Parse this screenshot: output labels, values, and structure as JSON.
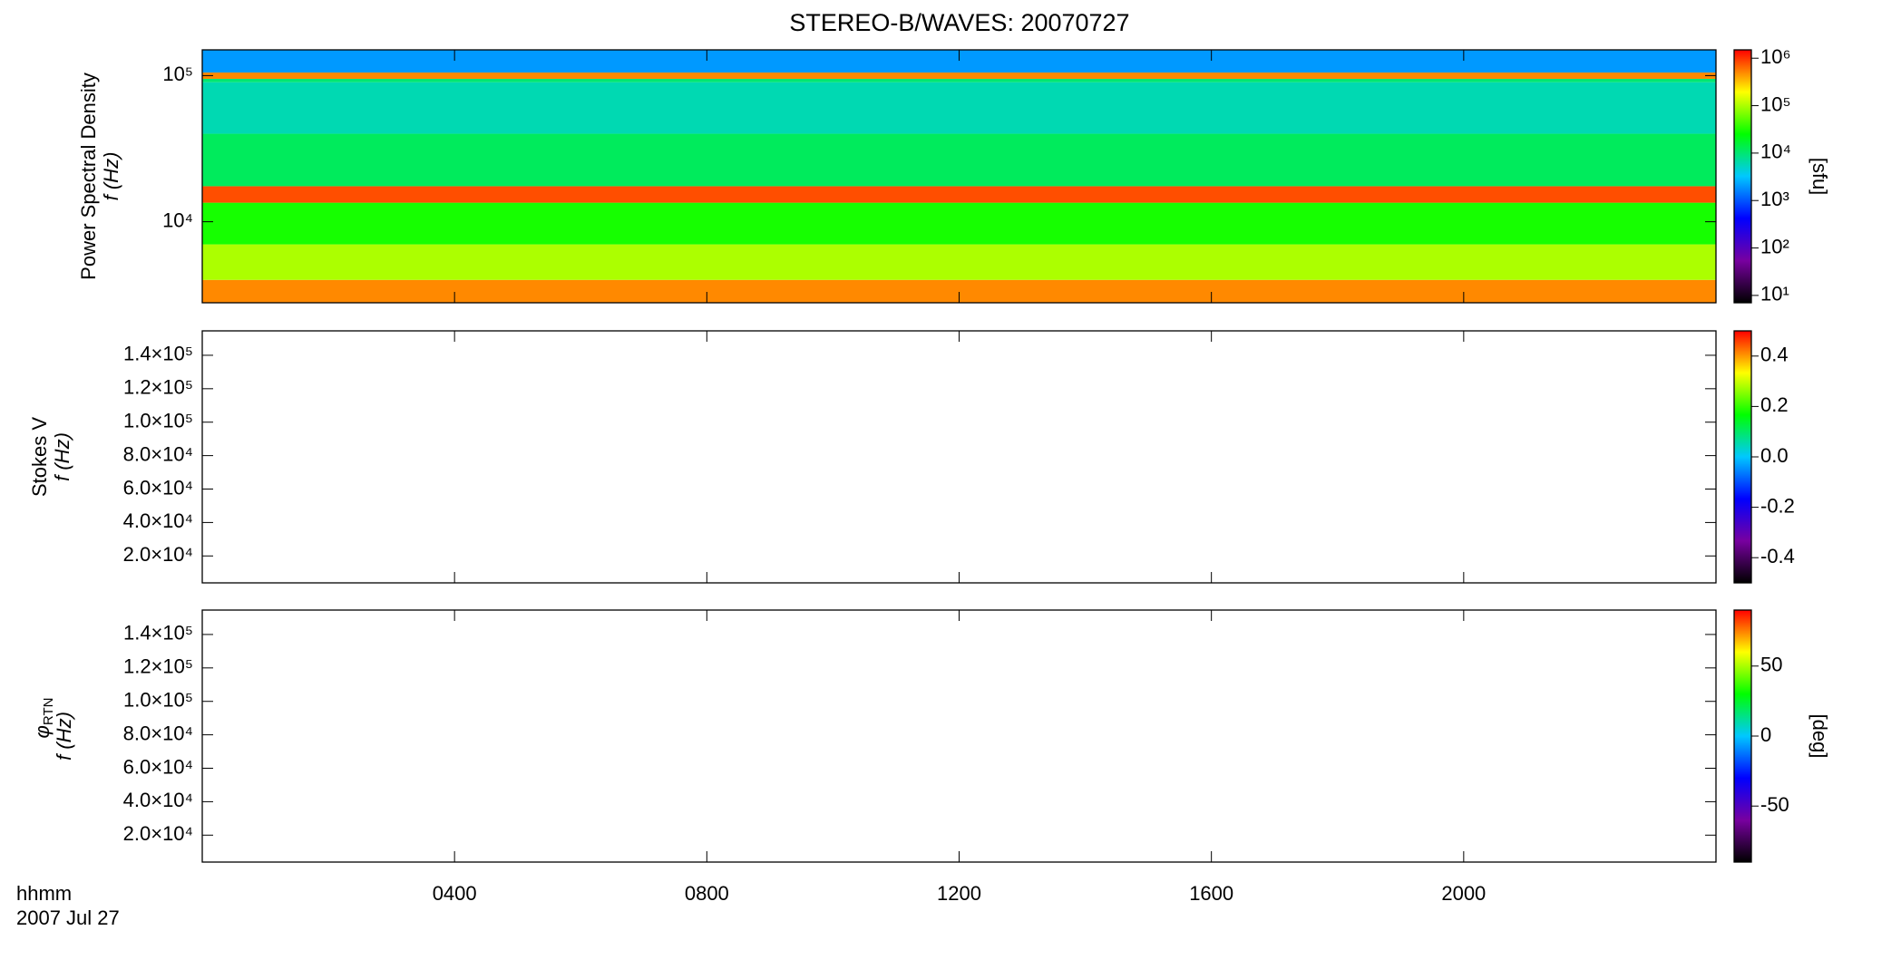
{
  "title": "STEREO-B/WAVES: 20070727",
  "colormap": [
    "#000000",
    "#7800a0",
    "#0000ff",
    "#00c8ff",
    "#00ff00",
    "#ffff00",
    "#ff0000"
  ],
  "chart_data": [
    {
      "type": "heatmap",
      "ylabel": [
        "Power Spectral Density",
        "f (Hz)"
      ],
      "log_y": true,
      "xlim": [
        0,
        24
      ],
      "ylim": [
        2790,
        150000
      ],
      "yticks": [
        {
          "value": 10000,
          "label": "10⁴"
        },
        {
          "value": 100000,
          "label": "10⁵"
        }
      ],
      "y_edges": [
        2790,
        4000,
        7000,
        13500,
        17500,
        40000,
        90000,
        95000,
        105000,
        150000
      ],
      "values": [
        500000,
        100000,
        30000,
        800000,
        12000,
        6000,
        10000,
        500000,
        2000
      ],
      "clim": [
        7,
        1500000
      ],
      "log_c": true,
      "clabel": "[sfu]",
      "cticks": [
        {
          "value": 10,
          "label": "10¹"
        },
        {
          "value": 100,
          "label": "10²"
        },
        {
          "value": 1000,
          "label": "10³"
        },
        {
          "value": 10000,
          "label": "10⁴"
        },
        {
          "value": 100000,
          "label": "10⁵"
        },
        {
          "value": 1000000,
          "label": "10⁶"
        }
      ]
    },
    {
      "type": "heatmap",
      "ylabel": [
        "Stokes V",
        "f (Hz)"
      ],
      "xlim": [
        0,
        24
      ],
      "ylim": [
        3900,
        154600
      ],
      "yticks": [
        {
          "value": 20000,
          "label": "2.0×10⁴"
        },
        {
          "value": 40000,
          "label": "4.0×10⁴"
        },
        {
          "value": 60000,
          "label": "6.0×10⁴"
        },
        {
          "value": 80000,
          "label": "8.0×10⁴"
        },
        {
          "value": 100000,
          "label": "1.0×10⁵"
        },
        {
          "value": 120000,
          "label": "1.2×10⁵"
        },
        {
          "value": 140000,
          "label": "1.4×10⁵"
        }
      ],
      "clim": [
        -0.5,
        0.5
      ],
      "cticks": [
        -0.4,
        -0.2,
        {
          "value": 0,
          "label": "0.0"
        },
        0.2,
        0.4
      ]
    },
    {
      "type": "heatmap",
      "ylabel": [
        "φ",
        "RTN",
        "f (Hz)"
      ],
      "xlim": [
        0,
        24
      ],
      "ylim": [
        3900,
        154600
      ],
      "yticks": [
        {
          "value": 20000,
          "label": "2.0×10⁴"
        },
        {
          "value": 40000,
          "label": "4.0×10⁴"
        },
        {
          "value": 60000,
          "label": "6.0×10⁴"
        },
        {
          "value": 80000,
          "label": "8.0×10⁴"
        },
        {
          "value": 100000,
          "label": "1.0×10⁵"
        },
        {
          "value": 120000,
          "label": "1.2×10⁵"
        },
        {
          "value": 140000,
          "label": "1.4×10⁵"
        }
      ],
      "clim": [
        -90,
        90
      ],
      "clabel": "[deg]",
      "cticks": [
        -50,
        0,
        50
      ],
      "xticks": [
        {
          "value": 4,
          "label": "0400"
        },
        {
          "value": 8,
          "label": "0800"
        },
        {
          "value": 12,
          "label": "1200"
        },
        {
          "value": 16,
          "label": "1600"
        },
        {
          "value": 20,
          "label": "2000"
        }
      ],
      "xlabel": [
        "hhmm",
        "2007 Jul 27"
      ]
    }
  ]
}
